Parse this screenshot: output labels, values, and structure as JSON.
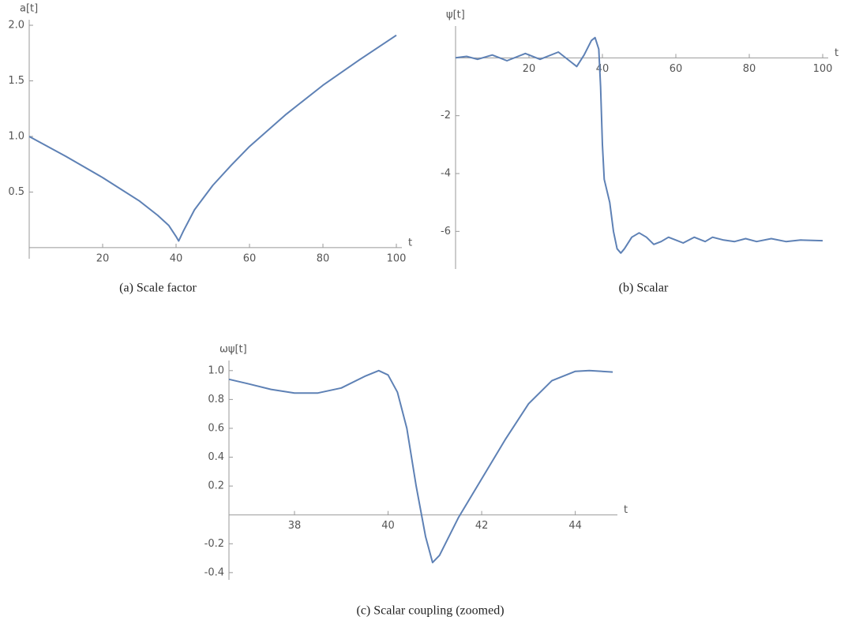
{
  "chart_data": [
    {
      "type": "line",
      "caption": "(a) Scale factor",
      "xlabel": "t",
      "ylabel": "a[t]",
      "xlim": [
        0,
        101.5
      ],
      "ylim": [
        -0.1,
        2.05
      ],
      "xticks": [
        20,
        40,
        60,
        80,
        100
      ],
      "yticks": [
        0.5,
        {
          "value": 1,
          "label": "1.0"
        },
        1.5,
        {
          "value": 2,
          "label": "2.0"
        }
      ],
      "series": [
        {
          "color": "#5e81b5",
          "x": [
            0,
            10,
            20,
            30,
            35,
            38,
            40,
            40.7,
            42,
            45,
            50,
            55,
            60,
            70,
            80,
            90,
            100
          ],
          "values": [
            1.0,
            0.82,
            0.63,
            0.42,
            0.29,
            0.2,
            0.1,
            0.06,
            0.15,
            0.34,
            0.56,
            0.74,
            0.91,
            1.2,
            1.46,
            1.69,
            1.91
          ]
        }
      ]
    },
    {
      "type": "line",
      "caption": "(b) Scalar",
      "xlabel": "t",
      "ylabel": "ψ[t]",
      "xlim": [
        0,
        101.5
      ],
      "ylim": [
        -7.3,
        1.1
      ],
      "xticks": [
        20,
        40,
        60,
        80,
        100
      ],
      "yticks": [
        -6,
        -4,
        -2
      ],
      "series": [
        {
          "color": "#5e81b5",
          "x": [
            0,
            3,
            6,
            10,
            14,
            19,
            23,
            28,
            31,
            33,
            35,
            37,
            38,
            39,
            39.5,
            40,
            40.5,
            42,
            43,
            44,
            45,
            46,
            48,
            50,
            52,
            54,
            56,
            58,
            60,
            62,
            65,
            68,
            70,
            73,
            76,
            79,
            82,
            86,
            90,
            94,
            100
          ],
          "values": [
            0,
            0.05,
            -0.05,
            0.1,
            -0.1,
            0.15,
            -0.05,
            0.2,
            -0.1,
            -0.3,
            0.1,
            0.6,
            0.7,
            0.3,
            -1,
            -3,
            -4.2,
            -5,
            -6,
            -6.6,
            -6.75,
            -6.6,
            -6.2,
            -6.05,
            -6.2,
            -6.45,
            -6.35,
            -6.2,
            -6.3,
            -6.4,
            -6.2,
            -6.35,
            -6.2,
            -6.3,
            -6.35,
            -6.25,
            -6.35,
            -6.25,
            -6.35,
            -6.3,
            -6.32
          ]
        }
      ]
    },
    {
      "type": "line",
      "caption": "(c) Scalar coupling (zoomed)",
      "xlabel": "t",
      "ylabel": "ωψ[t]",
      "xlim": [
        36.6,
        44.9
      ],
      "ylim": [
        -0.45,
        1.07
      ],
      "xticks": [
        38,
        40,
        42,
        44
      ],
      "yticks": [
        -0.4,
        -0.2,
        0.2,
        0.4,
        0.6,
        0.8,
        {
          "value": 1,
          "label": "1.0"
        }
      ],
      "series": [
        {
          "color": "#5e81b5",
          "x": [
            36.6,
            37,
            37.5,
            38,
            38.5,
            39,
            39.5,
            39.8,
            40,
            40.2,
            40.4,
            40.6,
            40.8,
            40.95,
            41.1,
            41.5,
            42,
            42.5,
            43,
            43.5,
            44,
            44.3,
            44.8
          ],
          "values": [
            0.94,
            0.91,
            0.87,
            0.845,
            0.845,
            0.88,
            0.96,
            1.0,
            0.97,
            0.85,
            0.6,
            0.2,
            -0.15,
            -0.33,
            -0.28,
            -0.02,
            0.25,
            0.52,
            0.77,
            0.93,
            0.995,
            1.0,
            0.99
          ]
        }
      ]
    }
  ]
}
